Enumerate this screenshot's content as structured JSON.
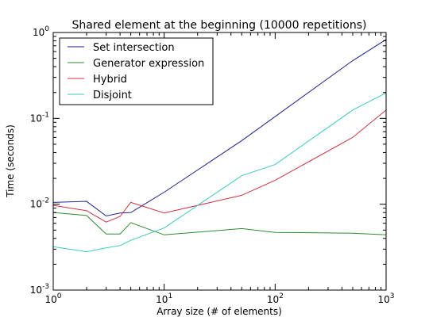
{
  "chart_data": {
    "type": "line",
    "title": "Shared element at the beginning (10000 repetitions)",
    "xlabel": "Array size (# of elements)",
    "ylabel": "Time (seconds)",
    "xscale": "log",
    "yscale": "log",
    "xlim": [
      1,
      1000
    ],
    "ylim": [
      0.001,
      1
    ],
    "x_ticks": [
      {
        "value": 1,
        "base": "10",
        "exp": "0"
      },
      {
        "value": 10,
        "base": "10",
        "exp": "1"
      },
      {
        "value": 100,
        "base": "10",
        "exp": "2"
      },
      {
        "value": 1000,
        "base": "10",
        "exp": "3"
      }
    ],
    "y_ticks": [
      {
        "value": 0.001,
        "base": "10",
        "exp": "-3"
      },
      {
        "value": 0.01,
        "base": "10",
        "exp": "-2"
      },
      {
        "value": 0.1,
        "base": "10",
        "exp": "-1"
      },
      {
        "value": 1,
        "base": "10",
        "exp": "0"
      }
    ],
    "grid": false,
    "legend_position": "top-left",
    "series": [
      {
        "name": "Set intersection",
        "color": "#1f1f8f",
        "x": [
          1,
          2,
          3,
          4,
          5,
          10,
          50,
          100,
          500,
          1000
        ],
        "y": [
          0.0105,
          0.0108,
          0.0073,
          0.0079,
          0.008,
          0.0138,
          0.055,
          0.105,
          0.47,
          0.83
        ]
      },
      {
        "name": "Generator expression",
        "color": "#2e8b2e",
        "x": [
          1,
          2,
          3,
          4,
          5,
          10,
          50,
          100,
          500,
          1000
        ],
        "y": [
          0.008,
          0.0074,
          0.0045,
          0.0045,
          0.0061,
          0.0044,
          0.0052,
          0.0047,
          0.0046,
          0.0044
        ]
      },
      {
        "name": "Hybrid",
        "color": "#cc3344",
        "x": [
          1,
          2,
          3,
          4,
          5,
          10,
          50,
          100,
          500,
          1000
        ],
        "y": [
          0.0097,
          0.0084,
          0.0062,
          0.0072,
          0.0105,
          0.0079,
          0.0127,
          0.019,
          0.06,
          0.125
        ]
      },
      {
        "name": "Disjoint",
        "color": "#3cc8c0",
        "x": [
          1,
          2,
          3,
          4,
          5,
          10,
          50,
          100,
          500,
          1000
        ],
        "y": [
          0.0032,
          0.0028,
          0.0031,
          0.0033,
          0.0038,
          0.0053,
          0.0215,
          0.029,
          0.125,
          0.198
        ]
      }
    ]
  }
}
